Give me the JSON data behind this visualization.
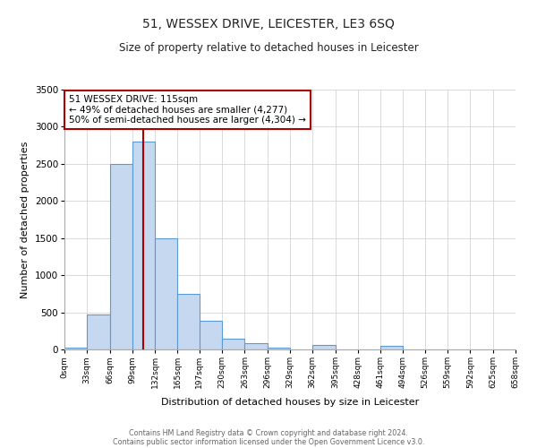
{
  "title": "51, WESSEX DRIVE, LEICESTER, LE3 6SQ",
  "subtitle": "Size of property relative to detached houses in Leicester",
  "xlabel": "Distribution of detached houses by size in Leicester",
  "ylabel": "Number of detached properties",
  "bar_color": "#c5d8f0",
  "bar_edge_color": "#5b9bd5",
  "background_color": "#ffffff",
  "grid_color": "#cccccc",
  "vline_color": "#aa0000",
  "vline_x": 115,
  "bin_edges": [
    0,
    33,
    66,
    99,
    132,
    165,
    197,
    230,
    263,
    296,
    329,
    362,
    395,
    428,
    461,
    494,
    526,
    559,
    592,
    625,
    658
  ],
  "bar_heights": [
    30,
    470,
    2500,
    2800,
    1500,
    750,
    390,
    150,
    80,
    30,
    0,
    60,
    0,
    0,
    50,
    0,
    0,
    0,
    0,
    0
  ],
  "ylim": [
    0,
    3500
  ],
  "yticks": [
    0,
    500,
    1000,
    1500,
    2000,
    2500,
    3000,
    3500
  ],
  "annotation_title": "51 WESSEX DRIVE: 115sqm",
  "annotation_line1": "← 49% of detached houses are smaller (4,277)",
  "annotation_line2": "50% of semi-detached houses are larger (4,304) →",
  "annotation_box_color": "#ffffff",
  "annotation_box_edge": "#aa0000",
  "footer_line1": "Contains HM Land Registry data © Crown copyright and database right 2024.",
  "footer_line2": "Contains public sector information licensed under the Open Government Licence v3.0.",
  "tick_labels": [
    "0sqm",
    "33sqm",
    "66sqm",
    "99sqm",
    "132sqm",
    "165sqm",
    "197sqm",
    "230sqm",
    "263sqm",
    "296sqm",
    "329sqm",
    "362sqm",
    "395sqm",
    "428sqm",
    "461sqm",
    "494sqm",
    "526sqm",
    "559sqm",
    "592sqm",
    "625sqm",
    "658sqm"
  ]
}
